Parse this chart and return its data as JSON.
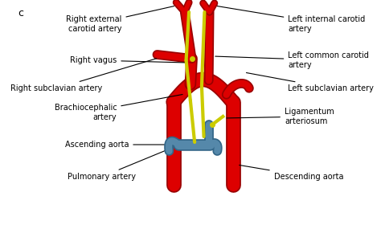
{
  "bg_color": "#ffffff",
  "artery_color": "#dd0000",
  "artery_outline": "#990000",
  "nerve_color": "#cccc00",
  "pulmonary_color": "#5588aa",
  "pulmonary_outline": "#336688",
  "text_color": "#000000",
  "lw_main": 11,
  "lw_branch": 8,
  "lw_small": 6,
  "lw_nerve": 3,
  "font_size": 7.0,
  "labels": {
    "right_ext_carotid": "Right external\ncarotid artery",
    "left_int_carotid": "Left internal carotid\nartery",
    "right_vagus": "Right vagus",
    "left_common_carotid": "Left common carotid\nartery",
    "right_subclavian": "Right subclavian artery",
    "left_subclavian": "Left subclavian artery",
    "brachiocephalic": "Brachiocephalic\nartery",
    "ligamentum": "Ligamentum\narteriosum",
    "ascending_aorta": "Ascending aorta",
    "pulmonary": "Pulmonary artery",
    "descending": "Descending aorta"
  }
}
